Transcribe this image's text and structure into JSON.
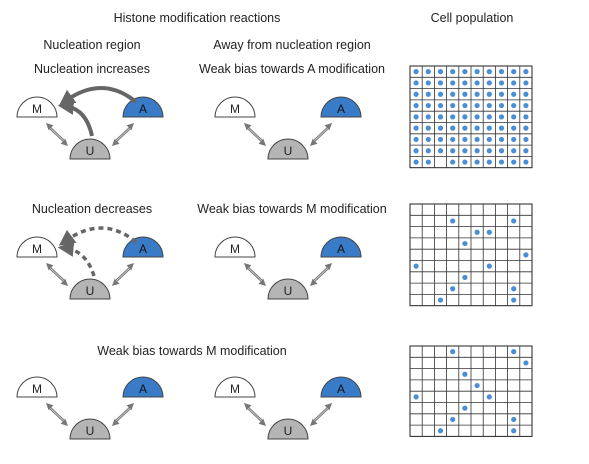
{
  "headers": {
    "reactions": "Histone modification reactions",
    "population": "Cell population",
    "nucleation_region": "Nucleation region",
    "away_region": "Away from nucleation region"
  },
  "rows": [
    {
      "left_caption": "Nucleation increases",
      "right_caption": "Weak bias towards A modification",
      "nucleation": "increases",
      "dots": [
        [
          1,
          1,
          1,
          1,
          1,
          1,
          1,
          1,
          1,
          1
        ],
        [
          1,
          1,
          1,
          1,
          1,
          1,
          1,
          1,
          1,
          1
        ],
        [
          1,
          1,
          1,
          1,
          1,
          1,
          1,
          1,
          1,
          1
        ],
        [
          1,
          1,
          1,
          1,
          1,
          1,
          1,
          1,
          1,
          1
        ],
        [
          1,
          1,
          1,
          1,
          1,
          1,
          1,
          1,
          1,
          1
        ],
        [
          1,
          1,
          1,
          1,
          1,
          1,
          1,
          1,
          1,
          1
        ],
        [
          1,
          1,
          1,
          1,
          1,
          1,
          1,
          1,
          1,
          1
        ],
        [
          1,
          1,
          1,
          1,
          1,
          1,
          1,
          1,
          1,
          1
        ],
        [
          1,
          1,
          0,
          1,
          1,
          1,
          1,
          1,
          1,
          1
        ]
      ]
    },
    {
      "left_caption": "Nucleation decreases",
      "right_caption": "Weak bias towards M modification",
      "nucleation": "decreases",
      "dots": [
        [
          0,
          0,
          0,
          0,
          0,
          0,
          0,
          0,
          0,
          0
        ],
        [
          0,
          0,
          0,
          1,
          0,
          0,
          0,
          0,
          1,
          0
        ],
        [
          0,
          0,
          0,
          0,
          0,
          1,
          1,
          0,
          0,
          0
        ],
        [
          0,
          0,
          0,
          0,
          1,
          0,
          0,
          0,
          0,
          0
        ],
        [
          0,
          0,
          0,
          0,
          0,
          0,
          0,
          0,
          0,
          1
        ],
        [
          1,
          0,
          0,
          0,
          0,
          0,
          1,
          0,
          0,
          0
        ],
        [
          0,
          0,
          0,
          0,
          1,
          0,
          0,
          0,
          0,
          0
        ],
        [
          0,
          0,
          0,
          1,
          0,
          0,
          0,
          0,
          1,
          0
        ],
        [
          0,
          0,
          1,
          0,
          0,
          0,
          0,
          0,
          1,
          0
        ]
      ]
    },
    {
      "shared_caption": "Weak bias towards M modification",
      "nucleation": "none",
      "dots": [
        [
          0,
          0,
          0,
          1,
          0,
          0,
          0,
          0,
          1,
          0
        ],
        [
          0,
          0,
          0,
          0,
          0,
          0,
          0,
          0,
          0,
          1
        ],
        [
          0,
          0,
          0,
          0,
          1,
          0,
          0,
          0,
          0,
          0
        ],
        [
          0,
          0,
          0,
          0,
          0,
          1,
          0,
          0,
          0,
          0
        ],
        [
          1,
          0,
          0,
          0,
          0,
          0,
          1,
          0,
          0,
          0
        ],
        [
          0,
          0,
          0,
          0,
          1,
          0,
          0,
          0,
          0,
          0
        ],
        [
          0,
          0,
          0,
          1,
          0,
          0,
          0,
          0,
          1,
          0
        ],
        [
          0,
          0,
          1,
          0,
          0,
          0,
          0,
          0,
          1,
          0
        ]
      ]
    }
  ],
  "nodes": {
    "M": "M",
    "A": "A",
    "U": "U"
  },
  "colors": {
    "a_fill": "#3a7bc8",
    "u_fill": "#b4b4b4",
    "m_fill": "#ffffff",
    "dot": "#4a8fd6",
    "nucleation_arrow": "#666666",
    "thin_arrow": "#777777"
  }
}
